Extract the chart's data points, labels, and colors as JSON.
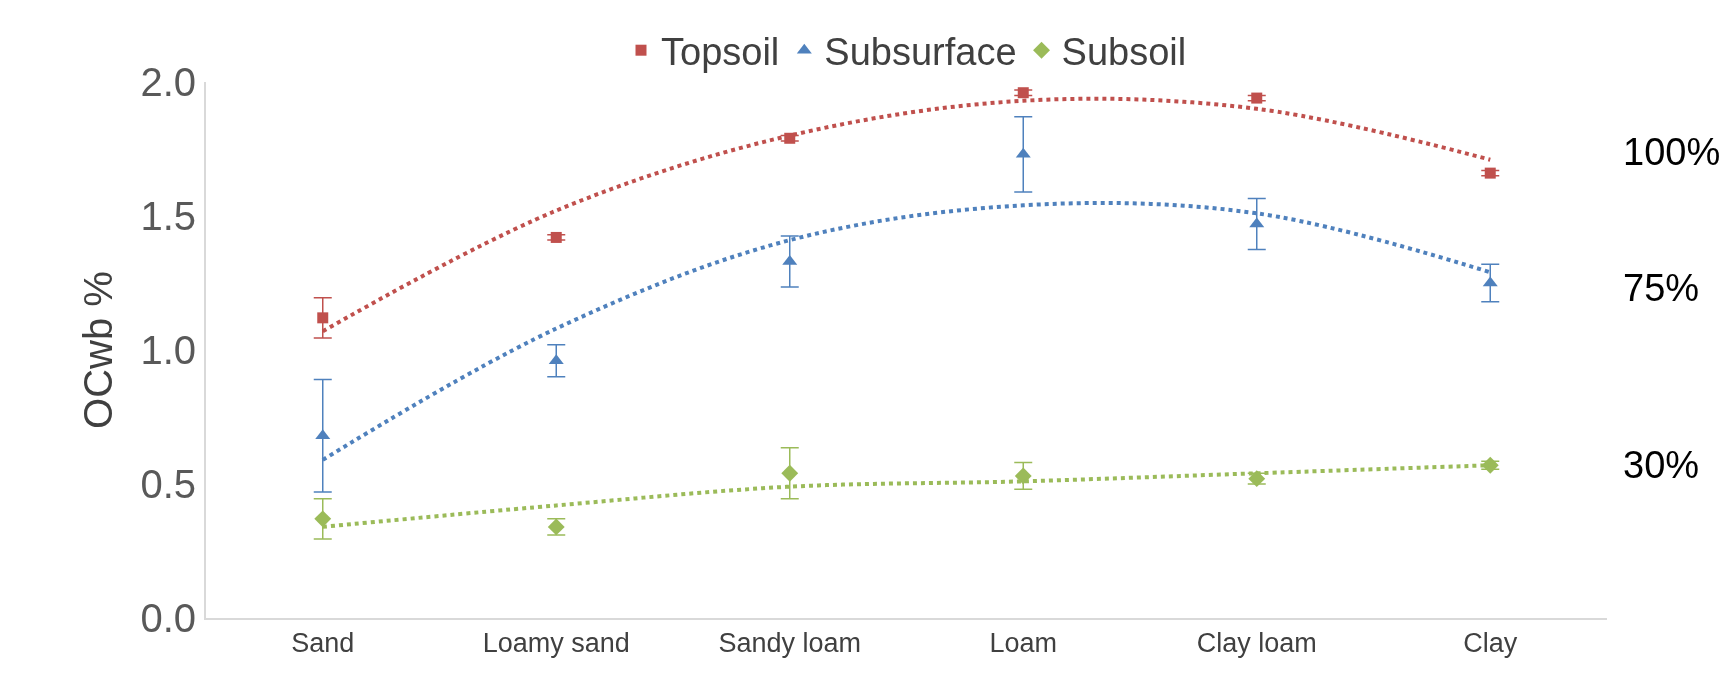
{
  "chart_data": {
    "type": "scatter",
    "ylabel": "OCwb %",
    "categories": [
      "Sand",
      "Loamy sand",
      "Sandy loam",
      "Loam",
      "Clay loam",
      "Clay"
    ],
    "series": [
      {
        "name": "Topsoil",
        "color": "#c0504d",
        "marker": "square",
        "values": [
          1.12,
          1.42,
          1.79,
          1.96,
          1.94,
          1.66
        ],
        "errors": [
          0.075,
          0.01,
          0.01,
          0.01,
          0.01,
          0.01
        ]
      },
      {
        "name": "Subsurface",
        "color": "#4f81bd",
        "marker": "triangle",
        "values": [
          0.68,
          0.96,
          1.33,
          1.73,
          1.47,
          1.25
        ],
        "errors": [
          0.21,
          0.06,
          0.095,
          0.14,
          0.095,
          0.07
        ]
      },
      {
        "name": "Subsoil",
        "color": "#9bbb59",
        "marker": "diamond",
        "values": [
          0.37,
          0.34,
          0.54,
          0.53,
          0.52,
          0.57
        ],
        "errors": [
          0.075,
          0.03,
          0.095,
          0.05,
          0.02,
          0.015
        ]
      },
      {
        "type": "line",
        "color": "#c0504d",
        "line_style": "dotted",
        "marker": "none",
        "values": [
          1.07,
          1.52,
          1.8,
          1.93,
          1.9,
          1.71
        ]
      },
      {
        "type": "line",
        "color": "#4f81bd",
        "line_style": "dotted",
        "marker": "none",
        "values": [
          0.59,
          1.08,
          1.41,
          1.54,
          1.51,
          1.29
        ]
      },
      {
        "type": "line",
        "color": "#9bbb59",
        "line_style": "dotted",
        "marker": "none",
        "values": [
          0.34,
          0.42,
          0.49,
          0.51,
          0.54,
          0.57
        ]
      }
    ],
    "annotations": [
      "100%",
      "75%",
      "30%"
    ],
    "ylim": [
      0,
      2
    ],
    "yticks": [
      {
        "value": 0,
        "label": "0.0"
      },
      {
        "value": 0.5,
        "label": "0.5"
      },
      {
        "value": 1,
        "label": "1.0"
      },
      {
        "value": 1.5,
        "label": "1.5"
      },
      {
        "value": 2,
        "label": "2.0"
      }
    ],
    "legend": "top"
  }
}
